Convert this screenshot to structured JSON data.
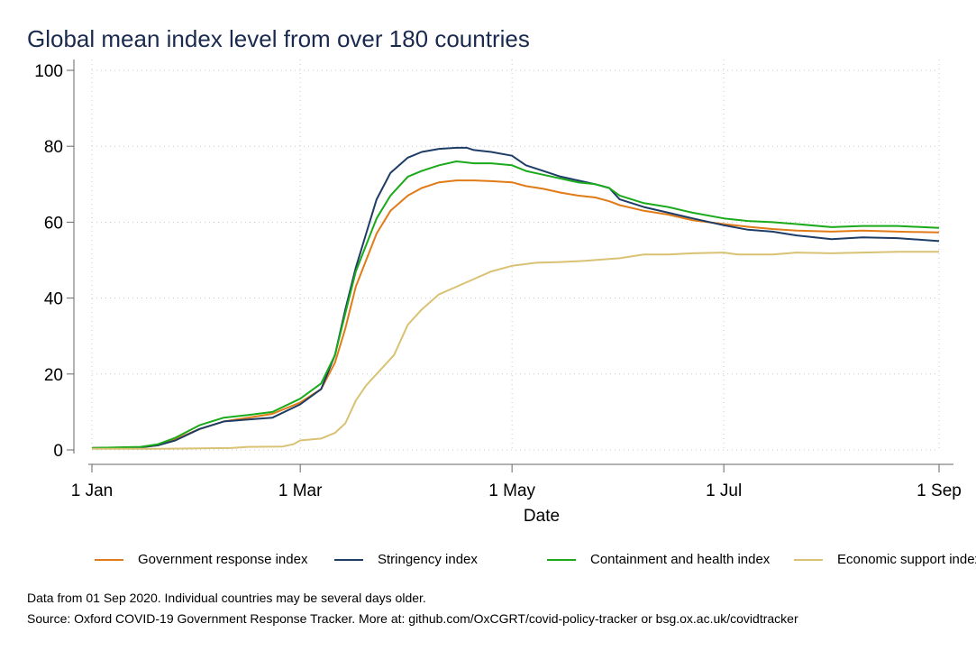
{
  "chart_data": {
    "type": "line",
    "title": "Global mean index level from over 180 countries",
    "xlabel": "Date",
    "ylabel": "",
    "ylim": [
      0,
      100
    ],
    "yticks": [
      0,
      20,
      40,
      60,
      80,
      100
    ],
    "xticks": [
      {
        "date": "2020-01-01",
        "label": "1 Jan"
      },
      {
        "date": "2020-03-01",
        "label": "1 Mar"
      },
      {
        "date": "2020-05-01",
        "label": "1 May"
      },
      {
        "date": "2020-07-01",
        "label": "1 Jul"
      },
      {
        "date": "2020-09-01",
        "label": "1 Sep"
      }
    ],
    "xlim": [
      "2020-01-01",
      "2020-09-01"
    ],
    "grid": true,
    "legend_position": "bottom",
    "series": [
      {
        "name": "Government response index",
        "color": "#e07b18",
        "points": [
          [
            "2020-01-01",
            0.5
          ],
          [
            "2020-01-15",
            0.7
          ],
          [
            "2020-01-20",
            1.2
          ],
          [
            "2020-01-25",
            2.8
          ],
          [
            "2020-02-01",
            5.5
          ],
          [
            "2020-02-08",
            7.5
          ],
          [
            "2020-02-15",
            8.5
          ],
          [
            "2020-02-22",
            9.5
          ],
          [
            "2020-03-01",
            12.5
          ],
          [
            "2020-03-07",
            16
          ],
          [
            "2020-03-11",
            23
          ],
          [
            "2020-03-14",
            32
          ],
          [
            "2020-03-17",
            43
          ],
          [
            "2020-03-20",
            50
          ],
          [
            "2020-03-23",
            57
          ],
          [
            "2020-03-27",
            63
          ],
          [
            "2020-04-01",
            67
          ],
          [
            "2020-04-05",
            69
          ],
          [
            "2020-04-10",
            70.5
          ],
          [
            "2020-04-15",
            71
          ],
          [
            "2020-04-20",
            71
          ],
          [
            "2020-04-25",
            70.8
          ],
          [
            "2020-05-01",
            70.5
          ],
          [
            "2020-05-05",
            69.5
          ],
          [
            "2020-05-10",
            68.8
          ],
          [
            "2020-05-15",
            67.8
          ],
          [
            "2020-05-20",
            67
          ],
          [
            "2020-05-25",
            66.5
          ],
          [
            "2020-05-29",
            65.5
          ],
          [
            "2020-06-01",
            64.5
          ],
          [
            "2020-06-08",
            63
          ],
          [
            "2020-06-15",
            62
          ],
          [
            "2020-06-22",
            60.5
          ],
          [
            "2020-07-01",
            59.5
          ],
          [
            "2020-07-08",
            58.8
          ],
          [
            "2020-07-15",
            58.2
          ],
          [
            "2020-07-22",
            57.8
          ],
          [
            "2020-08-01",
            57.5
          ],
          [
            "2020-08-10",
            57.8
          ],
          [
            "2020-08-20",
            57.5
          ],
          [
            "2020-09-01",
            57.3
          ]
        ]
      },
      {
        "name": "Stringency index",
        "color": "#1d3c66",
        "points": [
          [
            "2020-01-01",
            0.5
          ],
          [
            "2020-01-15",
            0.7
          ],
          [
            "2020-01-20",
            1.2
          ],
          [
            "2020-01-25",
            2.5
          ],
          [
            "2020-02-01",
            5.5
          ],
          [
            "2020-02-08",
            7.5
          ],
          [
            "2020-02-15",
            8
          ],
          [
            "2020-02-22",
            8.5
          ],
          [
            "2020-03-01",
            12
          ],
          [
            "2020-03-07",
            16
          ],
          [
            "2020-03-11",
            25
          ],
          [
            "2020-03-14",
            37
          ],
          [
            "2020-03-17",
            48
          ],
          [
            "2020-03-20",
            57
          ],
          [
            "2020-03-23",
            66
          ],
          [
            "2020-03-27",
            73
          ],
          [
            "2020-04-01",
            77
          ],
          [
            "2020-04-05",
            78.5
          ],
          [
            "2020-04-10",
            79.3
          ],
          [
            "2020-04-15",
            79.6
          ],
          [
            "2020-04-18",
            79.6
          ],
          [
            "2020-04-20",
            79
          ],
          [
            "2020-04-25",
            78.5
          ],
          [
            "2020-05-01",
            77.5
          ],
          [
            "2020-05-05",
            75
          ],
          [
            "2020-05-10",
            73.5
          ],
          [
            "2020-05-15",
            72
          ],
          [
            "2020-05-20",
            71
          ],
          [
            "2020-05-25",
            70
          ],
          [
            "2020-05-29",
            69
          ],
          [
            "2020-06-01",
            66
          ],
          [
            "2020-06-08",
            64
          ],
          [
            "2020-06-15",
            62.5
          ],
          [
            "2020-06-22",
            61
          ],
          [
            "2020-07-01",
            59.2
          ],
          [
            "2020-07-08",
            58
          ],
          [
            "2020-07-15",
            57.5
          ],
          [
            "2020-07-22",
            56.5
          ],
          [
            "2020-08-01",
            55.5
          ],
          [
            "2020-08-10",
            56
          ],
          [
            "2020-08-20",
            55.8
          ],
          [
            "2020-09-01",
            55
          ]
        ]
      },
      {
        "name": "Containment and health index",
        "color": "#1aaa1a",
        "points": [
          [
            "2020-01-01",
            0.5
          ],
          [
            "2020-01-15",
            0.8
          ],
          [
            "2020-01-20",
            1.5
          ],
          [
            "2020-01-25",
            3.2
          ],
          [
            "2020-02-01",
            6.5
          ],
          [
            "2020-02-08",
            8.5
          ],
          [
            "2020-02-15",
            9.2
          ],
          [
            "2020-02-22",
            10
          ],
          [
            "2020-03-01",
            13.5
          ],
          [
            "2020-03-07",
            17.5
          ],
          [
            "2020-03-11",
            25
          ],
          [
            "2020-03-14",
            36
          ],
          [
            "2020-03-17",
            47
          ],
          [
            "2020-03-20",
            54
          ],
          [
            "2020-03-23",
            61
          ],
          [
            "2020-03-27",
            67
          ],
          [
            "2020-04-01",
            72
          ],
          [
            "2020-04-05",
            73.5
          ],
          [
            "2020-04-10",
            75
          ],
          [
            "2020-04-15",
            76
          ],
          [
            "2020-04-20",
            75.5
          ],
          [
            "2020-04-25",
            75.5
          ],
          [
            "2020-05-01",
            75
          ],
          [
            "2020-05-05",
            73.5
          ],
          [
            "2020-05-10",
            72.5
          ],
          [
            "2020-05-15",
            71.5
          ],
          [
            "2020-05-20",
            70.5
          ],
          [
            "2020-05-25",
            70
          ],
          [
            "2020-05-29",
            69
          ],
          [
            "2020-06-01",
            67
          ],
          [
            "2020-06-08",
            65
          ],
          [
            "2020-06-15",
            64
          ],
          [
            "2020-06-22",
            62.5
          ],
          [
            "2020-07-01",
            61
          ],
          [
            "2020-07-08",
            60.3
          ],
          [
            "2020-07-15",
            60
          ],
          [
            "2020-07-22",
            59.5
          ],
          [
            "2020-08-01",
            58.7
          ],
          [
            "2020-08-10",
            59
          ],
          [
            "2020-08-20",
            59
          ],
          [
            "2020-09-01",
            58.5
          ]
        ]
      },
      {
        "name": "Economic support index",
        "color": "#d9c274",
        "points": [
          [
            "2020-01-01",
            0.3
          ],
          [
            "2020-01-20",
            0.3
          ],
          [
            "2020-02-01",
            0.4
          ],
          [
            "2020-02-10",
            0.5
          ],
          [
            "2020-02-15",
            0.8
          ],
          [
            "2020-02-25",
            0.9
          ],
          [
            "2020-02-28",
            1.5
          ],
          [
            "2020-03-01",
            2.5
          ],
          [
            "2020-03-07",
            3
          ],
          [
            "2020-03-11",
            4.5
          ],
          [
            "2020-03-14",
            7
          ],
          [
            "2020-03-17",
            13
          ],
          [
            "2020-03-20",
            17
          ],
          [
            "2020-03-24",
            21
          ],
          [
            "2020-03-28",
            25
          ],
          [
            "2020-04-01",
            33
          ],
          [
            "2020-04-05",
            37
          ],
          [
            "2020-04-10",
            41
          ],
          [
            "2020-04-15",
            43
          ],
          [
            "2020-04-20",
            45
          ],
          [
            "2020-04-25",
            47
          ],
          [
            "2020-05-01",
            48.5
          ],
          [
            "2020-05-08",
            49.3
          ],
          [
            "2020-05-15",
            49.5
          ],
          [
            "2020-05-22",
            49.8
          ],
          [
            "2020-06-01",
            50.5
          ],
          [
            "2020-06-08",
            51.5
          ],
          [
            "2020-06-15",
            51.5
          ],
          [
            "2020-06-22",
            51.8
          ],
          [
            "2020-07-01",
            52
          ],
          [
            "2020-07-05",
            51.5
          ],
          [
            "2020-07-15",
            51.5
          ],
          [
            "2020-07-22",
            52
          ],
          [
            "2020-08-01",
            51.8
          ],
          [
            "2020-08-10",
            52
          ],
          [
            "2020-08-20",
            52.2
          ],
          [
            "2020-09-01",
            52.2
          ]
        ]
      }
    ]
  },
  "notes": {
    "line1": "Data from 01 Sep 2020. Individual countries may be several days older.",
    "line2": "Source: Oxford COVID-19 Government Response Tracker. More at: github.com/OxCGRT/covid-policy-tracker or bsg.ox.ac.uk/covidtracker"
  }
}
